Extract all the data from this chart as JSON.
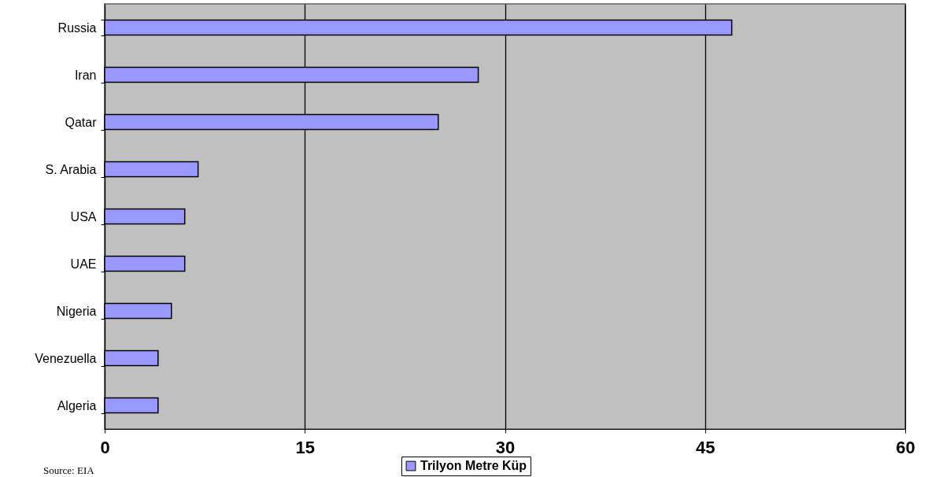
{
  "chart_data": {
    "type": "bar",
    "orientation": "horizontal",
    "categories": [
      "Russia",
      "Iran",
      "Qatar",
      "S. Arabia",
      "USA",
      "UAE",
      "Nigeria",
      "Venezuella",
      "Algeria"
    ],
    "series": [
      {
        "name": "Trilyon Metre Küp",
        "color": "#9999ff",
        "values": [
          47,
          28,
          25,
          7,
          6,
          6,
          5,
          4,
          4
        ]
      }
    ],
    "xlim": [
      0,
      60
    ],
    "xticks": [
      0,
      15,
      30,
      45,
      60
    ],
    "grid": "x",
    "legend": "bottom",
    "annotations": [
      "Source: EIA"
    ]
  }
}
